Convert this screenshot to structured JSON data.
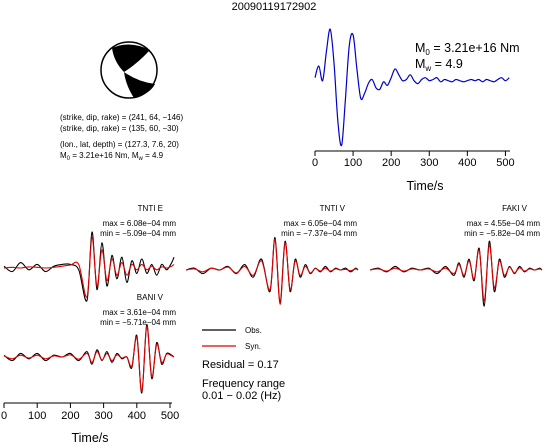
{
  "title": "20090119172902",
  "mechanism": {
    "line1": "(strike, dip, rake) = (241, 64, −146)",
    "line2": "(strike, dip, rake) = (135, 60, −30)",
    "line3": "(lon., lat, depth) = (127.3, 7.6, 20)",
    "m0_prefix": "M",
    "m0_sub": "0",
    "m0_rest": " = 3.21e+16 Nm, M",
    "mw_sub": "w",
    "mw_rest": " = 4.9"
  },
  "stf_annotation": {
    "m0_prefix": "M",
    "m0_sub": "0",
    "m0_rest": " = 3.21e+16 Nm",
    "mw_prefix": "M",
    "mw_sub": "w",
    "mw_rest": " = 4.9"
  },
  "axes_label": "Time/s",
  "stations": [
    {
      "name": "TNTI E",
      "max": "max = 6.08e−04 mm",
      "min": "min = −5.09e−04 mm"
    },
    {
      "name": "TNTI V",
      "max": "max = 6.05e−04 mm",
      "min": "min = −7.37e−04 mm"
    },
    {
      "name": "FAKI V",
      "max": "max = 4.55e−04 mm",
      "min": "min = −5.82e−04 mm"
    },
    {
      "name": "BANI V",
      "max": "max = 3.61e−04 mm",
      "min": "min = −5.71e−04 mm"
    }
  ],
  "legend": {
    "obs": "Obs.",
    "syn": "Syn.",
    "residual": "Residual = 0.17",
    "freq1": "Frequency range",
    "freq2": "0.01 − 0.02 (Hz)"
  },
  "colors": {
    "obs": "#000000",
    "syn": "#e00000",
    "stf": "#0000cc"
  },
  "chart_data": [
    {
      "type": "line",
      "title": "",
      "xlabel": "Time/s",
      "ylabel": "",
      "xlim": [
        0,
        512
      ],
      "xticks": [
        0,
        100,
        200,
        300,
        400,
        500
      ],
      "tick_labels": [
        "0",
        "100",
        "200",
        "300",
        "400",
        "500"
      ],
      "series": [
        {
          "x": [
            0,
            10,
            20,
            30,
            40,
            50,
            60,
            70,
            80,
            90,
            100,
            110,
            120,
            130,
            140,
            150,
            160,
            170,
            180,
            190,
            200,
            210,
            220,
            230,
            240,
            250,
            260,
            270,
            280,
            290,
            300,
            310,
            320,
            330,
            340,
            350,
            360,
            370,
            380,
            390,
            400,
            410,
            420,
            430,
            440,
            450,
            460,
            470,
            480,
            490,
            500,
            510
          ],
          "values": [
            0.15,
            0.35,
            0.1,
            0.6,
            0.98,
            0.4,
            -0.6,
            -1.0,
            -0.2,
            0.7,
            0.88,
            0.3,
            -0.2,
            -0.12,
            0.05,
            0.12,
            -0.02,
            -0.05,
            0.08,
            0.02,
            0.15,
            0.3,
            0.2,
            0.1,
            0.12,
            0.2,
            0.1,
            0.05,
            0.12,
            0.15,
            0.1,
            0.12,
            0.15,
            0.08,
            0.12,
            0.1,
            0.08,
            0.12,
            0.1,
            0.08,
            0.1,
            0.12,
            0.1,
            0.12,
            0.08,
            0.12,
            0.1,
            0.08,
            0.12,
            0.15,
            0.1,
            0.15
          ]
        }
      ]
    },
    {
      "type": "line",
      "title": "TNTI E",
      "series": [
        {
          "name": "Obs.",
          "x": [
            0,
            25,
            50,
            75,
            100,
            125,
            150,
            175,
            200,
            225,
            250,
            265,
            280,
            295,
            310,
            325,
            340,
            355,
            370,
            385,
            400,
            415,
            430,
            445,
            460,
            475,
            490,
            505,
            512
          ],
          "values": [
            0.05,
            -0.1,
            0.15,
            -0.05,
            0.1,
            -0.1,
            0.05,
            0.1,
            0.1,
            -0.05,
            -0.9,
            1.0,
            -0.6,
            0.7,
            -0.5,
            0.35,
            -0.3,
            0.3,
            -0.4,
            0.2,
            -0.15,
            0.25,
            -0.15,
            0.1,
            -0.2,
            0.1,
            -0.05,
            0.15,
            0.3
          ]
        },
        {
          "name": "Syn.",
          "x": [
            0,
            25,
            50,
            75,
            100,
            125,
            150,
            175,
            200,
            225,
            250,
            265,
            280,
            295,
            310,
            325,
            340,
            355,
            370,
            385,
            400,
            415,
            430,
            445,
            460,
            475,
            490,
            505,
            512
          ],
          "values": [
            0.0,
            0.02,
            0.0,
            0.03,
            0.02,
            0.0,
            0.02,
            0.05,
            0.08,
            0.1,
            -0.8,
            0.85,
            -0.5,
            0.5,
            -0.35,
            0.25,
            -0.2,
            0.15,
            -0.2,
            0.1,
            -0.05,
            0.1,
            -0.05,
            0.05,
            -0.05,
            0.03,
            0.0,
            0.05,
            0.1
          ]
        }
      ]
    },
    {
      "type": "line",
      "title": "TNTI V",
      "series": [
        {
          "name": "Obs.",
          "x": [
            0,
            25,
            50,
            75,
            100,
            125,
            150,
            175,
            200,
            225,
            250,
            265,
            280,
            295,
            310,
            325,
            340,
            355,
            370,
            385,
            400,
            415,
            430,
            445,
            460,
            475,
            490,
            505,
            512
          ],
          "values": [
            0.0,
            0.05,
            -0.1,
            0.05,
            0.0,
            0.1,
            -0.1,
            0.15,
            -0.2,
            0.3,
            -0.6,
            0.9,
            -0.9,
            0.8,
            -0.6,
            0.3,
            -0.2,
            0.15,
            -0.1,
            0.05,
            -0.05,
            0.1,
            -0.05,
            0.05,
            0.0,
            0.05,
            -0.05,
            0.05,
            0.0
          ]
        },
        {
          "name": "Syn.",
          "x": [
            0,
            25,
            50,
            75,
            100,
            125,
            150,
            175,
            200,
            225,
            250,
            265,
            280,
            295,
            310,
            325,
            340,
            355,
            370,
            385,
            400,
            415,
            430,
            445,
            460,
            475,
            490,
            505,
            512
          ],
          "values": [
            0.0,
            0.03,
            -0.05,
            0.05,
            0.0,
            0.08,
            -0.08,
            0.1,
            -0.15,
            0.25,
            -0.55,
            0.85,
            -0.95,
            0.75,
            -0.55,
            0.25,
            -0.15,
            0.1,
            -0.08,
            0.04,
            -0.03,
            0.05,
            -0.03,
            0.03,
            0.0,
            0.02,
            -0.02,
            0.03,
            0.0
          ]
        }
      ]
    },
    {
      "type": "line",
      "title": "FAKI V",
      "series": [
        {
          "name": "Obs.",
          "x": [
            0,
            25,
            50,
            75,
            100,
            125,
            150,
            175,
            200,
            225,
            250,
            265,
            280,
            295,
            310,
            325,
            340,
            355,
            370,
            385,
            400,
            415,
            430,
            445,
            460,
            475,
            490,
            505,
            512
          ],
          "values": [
            0.0,
            0.05,
            -0.05,
            0.1,
            -0.05,
            0.05,
            0.0,
            0.05,
            -0.1,
            0.1,
            -0.15,
            0.2,
            -0.2,
            0.3,
            -0.3,
            0.6,
            -1.0,
            0.8,
            -0.6,
            0.3,
            -0.2,
            0.1,
            -0.1,
            0.1,
            -0.05,
            0.05,
            0.0,
            0.05,
            0.0
          ]
        },
        {
          "name": "Syn.",
          "x": [
            0,
            25,
            50,
            75,
            100,
            125,
            150,
            175,
            200,
            225,
            250,
            265,
            280,
            295,
            310,
            325,
            340,
            355,
            370,
            385,
            400,
            415,
            430,
            445,
            460,
            475,
            490,
            505,
            512
          ],
          "values": [
            0.0,
            0.03,
            -0.03,
            0.05,
            -0.03,
            0.03,
            0.0,
            0.03,
            -0.05,
            0.05,
            -0.1,
            0.15,
            -0.15,
            0.25,
            -0.25,
            0.55,
            -0.85,
            0.7,
            -0.5,
            0.25,
            -0.15,
            0.08,
            -0.08,
            0.06,
            -0.03,
            0.03,
            0.0,
            0.03,
            0.0
          ]
        }
      ]
    },
    {
      "type": "line",
      "title": "BANI V",
      "xlabel": "Time/s",
      "xlim": [
        0,
        512
      ],
      "xticks": [
        0,
        100,
        200,
        300,
        400,
        500
      ],
      "tick_labels": [
        "0",
        "100",
        "200",
        "300",
        "400",
        "500"
      ],
      "series": [
        {
          "name": "Obs.",
          "x": [
            0,
            25,
            50,
            75,
            100,
            125,
            150,
            175,
            200,
            225,
            250,
            265,
            280,
            295,
            310,
            325,
            340,
            355,
            370,
            385,
            400,
            415,
            430,
            445,
            460,
            475,
            490,
            505,
            512
          ],
          "values": [
            0.05,
            -0.1,
            0.1,
            -0.05,
            0.1,
            -0.1,
            0.05,
            0.0,
            0.1,
            -0.1,
            0.15,
            -0.2,
            0.2,
            -0.1,
            0.15,
            -0.15,
            0.1,
            -0.05,
            0.0,
            -0.3,
            0.6,
            -1.0,
            0.9,
            -0.6,
            0.4,
            -0.2,
            0.1,
            0.05,
            0.0
          ]
        },
        {
          "name": "Syn.",
          "x": [
            0,
            25,
            50,
            75,
            100,
            125,
            150,
            175,
            200,
            225,
            250,
            265,
            280,
            295,
            310,
            325,
            340,
            355,
            370,
            385,
            400,
            415,
            430,
            445,
            460,
            475,
            490,
            505,
            512
          ],
          "values": [
            0.03,
            -0.05,
            0.05,
            -0.03,
            0.05,
            -0.05,
            0.03,
            0.0,
            0.06,
            -0.06,
            0.1,
            -0.15,
            0.15,
            -0.08,
            0.1,
            -0.1,
            0.06,
            -0.03,
            0.0,
            -0.25,
            0.55,
            -0.95,
            0.85,
            -0.55,
            0.35,
            -0.15,
            0.08,
            0.03,
            0.0
          ]
        }
      ]
    }
  ]
}
